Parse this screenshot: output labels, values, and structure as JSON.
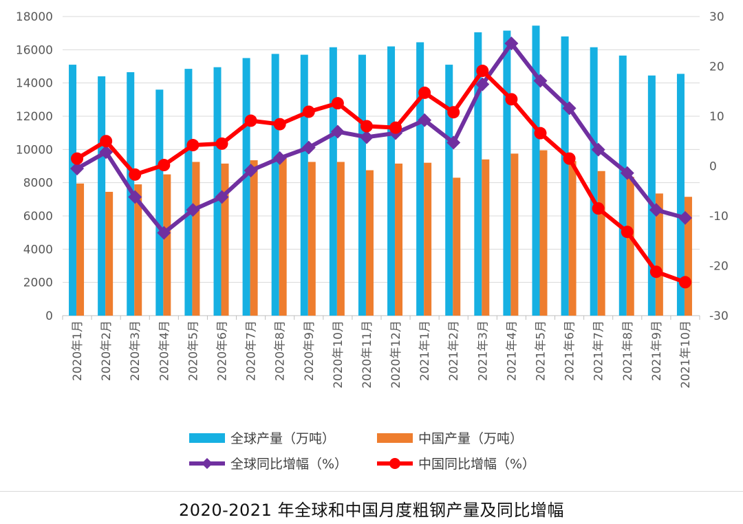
{
  "caption": "2020-2021 年全球和中国月度粗钢产量及同比增幅",
  "chart_data": {
    "type": "bar",
    "categories": [
      "2020年1月",
      "2020年2月",
      "2020年3月",
      "2020年4月",
      "2020年5月",
      "2020年6月",
      "2020年7月",
      "2020年8月",
      "2020年9月",
      "2020年10月",
      "2020年11月",
      "2020年12月",
      "2021年1月",
      "2021年2月",
      "2021年3月",
      "2021年4月",
      "2021年5月",
      "2021年6月",
      "2021年7月",
      "2021年8月",
      "2021年9月",
      "2021年10月"
    ],
    "left_axis": {
      "min": 0,
      "max": 18000,
      "step": 2000,
      "ticks": [
        "0",
        "2000",
        "4000",
        "6000",
        "8000",
        "10000",
        "12000",
        "14000",
        "16000",
        "18000"
      ]
    },
    "right_axis": {
      "min": -30,
      "max": 30,
      "step": 10,
      "ticks": [
        "-30",
        "-20",
        "-10",
        "0",
        "10",
        "20",
        "30"
      ]
    },
    "grid": true,
    "legend_position": "bottom",
    "series": [
      {
        "name": "全球产量（万吨）",
        "kind": "bar",
        "axis": "left",
        "color": "#16b0e2",
        "values": [
          15100,
          14400,
          14650,
          13600,
          14850,
          14950,
          15500,
          15750,
          15700,
          16150,
          15700,
          16200,
          16450,
          15100,
          17050,
          17150,
          17450,
          16800,
          16150,
          15650,
          14450,
          14550
        ]
      },
      {
        "name": "中国产量（万吨）",
        "kind": "bar",
        "axis": "left",
        "color": "#ee7d2e",
        "values": [
          7950,
          7450,
          7900,
          8500,
          9250,
          9150,
          9350,
          9500,
          9250,
          9250,
          8750,
          9150,
          9200,
          8300,
          9400,
          9750,
          9950,
          9300,
          8700,
          8350,
          7350,
          7150
        ]
      },
      {
        "name": "全球同比增幅（%）",
        "kind": "line",
        "axis": "right",
        "color": "#7030a0",
        "marker": "diamond",
        "values": [
          -0.5,
          2.8,
          -6.2,
          -13.4,
          -8.8,
          -6.2,
          -0.9,
          1.6,
          3.7,
          6.9,
          5.8,
          6.6,
          9.2,
          4.7,
          16.4,
          24.6,
          17.1,
          11.6,
          3.3,
          -1.4,
          -8.8,
          -10.4
        ]
      },
      {
        "name": "中国同比增幅（%）",
        "kind": "line",
        "axis": "right",
        "color": "#ff0000",
        "marker": "circle",
        "values": [
          1.5,
          5.0,
          -1.7,
          0.2,
          4.2,
          4.5,
          9.1,
          8.4,
          10.9,
          12.6,
          8.0,
          7.7,
          14.7,
          10.8,
          19.1,
          13.4,
          6.6,
          1.5,
          -8.5,
          -13.2,
          -21.2,
          -23.3
        ]
      }
    ]
  }
}
